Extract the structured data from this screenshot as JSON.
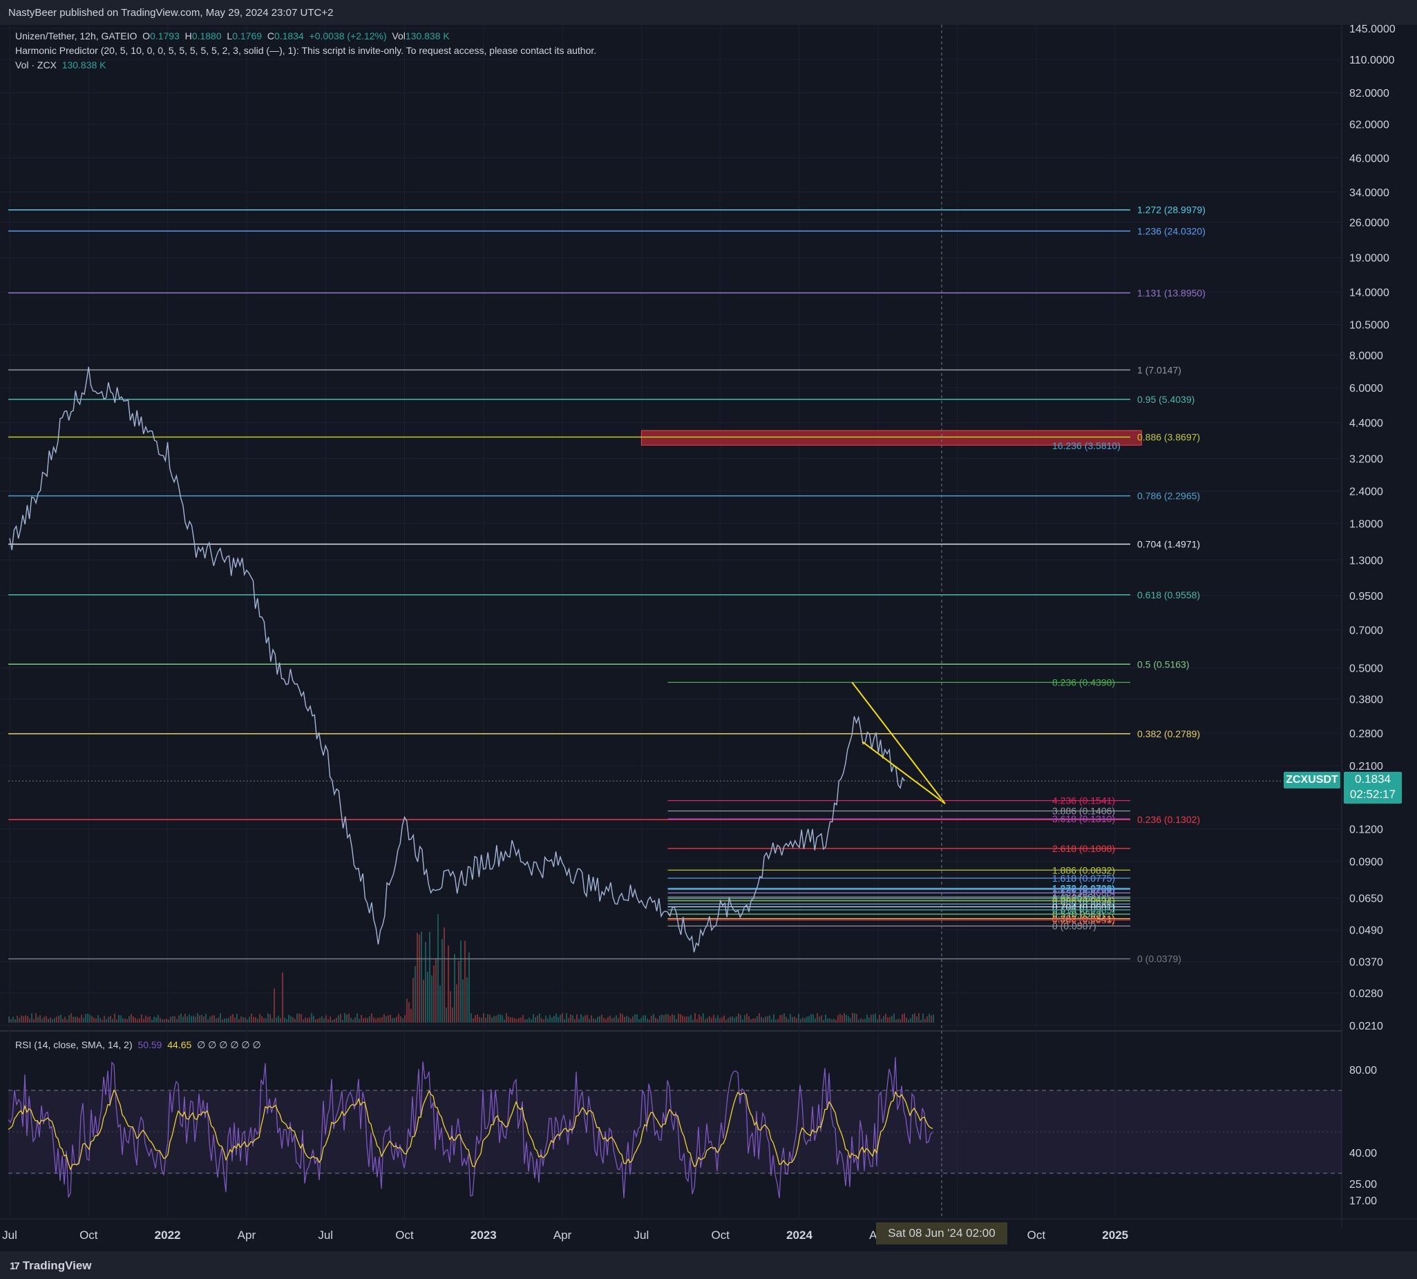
{
  "header": {
    "published": "NastyBeer published on TradingView.com, May 29, 2024 23:07 UTC+2",
    "symbol_line": {
      "pair": "Unizen/Tether, 12h, GATEIO",
      "o_label": "O",
      "o": "0.1793",
      "h_label": "H",
      "h": "0.1880",
      "l_label": "L",
      "l": "0.1769",
      "c_label": "C",
      "c": "0.1834",
      "change": "+0.0038 (+2.12%)",
      "vol_label": "Vol",
      "vol": "130.838 K"
    },
    "indicator_line": "Harmonic Predictor (20, 5, 10, 0, 0, 5, 5, 5, 5, 5, 2, 3, solid (—), 1): This script is invite-only. To request access, please contact its author.",
    "vol_line": {
      "label": "Vol · ZCX",
      "value": "130.838 K"
    }
  },
  "footer": {
    "brand": "TradingView",
    "logo_glyph": "17"
  },
  "badges": {
    "symbol": "ZCXUSDT",
    "price": "0.1834",
    "countdown": "02:52:17",
    "crosshair_date": "Sat 08 Jun '24  02:00"
  },
  "rsi": {
    "label": "RSI (14, close, SMA, 14, 2)",
    "rsi_value": "50.59",
    "sma_value": "44.65",
    "extra": "∅ ∅ ∅ ∅ ∅ ∅",
    "levels": [
      "80.00",
      "40.00",
      "25.00",
      "17.00"
    ],
    "upper_band": 70,
    "lower_band": 30
  },
  "colors": {
    "background": "#131722",
    "price_line": "#a4b4d6",
    "rsi_line": "#7e57c2",
    "rsi_sma": "#f2d52a",
    "wedge": "#f5e000",
    "accent": "#26a69a",
    "zone": "#b22833"
  },
  "chart_data": {
    "type": "line",
    "title": "Unizen/Tether, 12h, GATEIO",
    "scale": "log",
    "y_ticks": [
      "145.0000",
      "110.0000",
      "82.0000",
      "62.0000",
      "46.0000",
      "34.0000",
      "26.0000",
      "19.0000",
      "14.0000",
      "10.5000",
      "8.0000",
      "6.0000",
      "4.4000",
      "3.2000",
      "2.4000",
      "1.8000",
      "1.3000",
      "0.9500",
      "0.7000",
      "0.5000",
      "0.3800",
      "0.2800",
      "0.2100",
      "0.1200",
      "0.0900",
      "0.0650",
      "0.0490",
      "0.0370",
      "0.0280",
      "0.0210"
    ],
    "x_ticks": [
      "Jul",
      "Oct",
      "2022",
      "Apr",
      "Jul",
      "Oct",
      "2023",
      "Apr",
      "Jul",
      "Oct",
      "2024",
      "Apr",
      "Jul",
      "Oct",
      "2025"
    ],
    "x": [
      "2021-07",
      "2021-08",
      "2021-09",
      "2021-10",
      "2021-11",
      "2021-12",
      "2022-01",
      "2022-02",
      "2022-03",
      "2022-04",
      "2022-05",
      "2022-06",
      "2022-07",
      "2022-08",
      "2022-09",
      "2022-10",
      "2022-11",
      "2022-12",
      "2023-01",
      "2023-02",
      "2023-03",
      "2023-04",
      "2023-05",
      "2023-06",
      "2023-07",
      "2023-08",
      "2023-09",
      "2023-10",
      "2023-11",
      "2023-12",
      "2024-01",
      "2024-02",
      "2024-03",
      "2024-04",
      "2024-05"
    ],
    "series": [
      {
        "values": [
          1.5,
          2.2,
          4.5,
          6.5,
          5.6,
          4.2,
          3.4,
          1.5,
          1.3,
          1.2,
          0.55,
          0.4,
          0.24,
          0.1,
          0.048,
          0.13,
          0.075,
          0.075,
          0.09,
          0.1,
          0.085,
          0.09,
          0.072,
          0.068,
          0.066,
          0.058,
          0.044,
          0.058,
          0.06,
          0.1,
          0.11,
          0.105,
          0.3,
          0.26,
          0.175
        ]
      }
    ],
    "fib_levels_long": [
      {
        "label": "1.272 (28.9979)",
        "value": 28.9979,
        "color": "#4dd0e1"
      },
      {
        "label": "1.236 (24.0320)",
        "value": 24.032,
        "color": "#5b9cf6"
      },
      {
        "label": "1.131 (13.8950)",
        "value": 13.895,
        "color": "#9575cd"
      },
      {
        "label": "1 (7.0147)",
        "value": 7.0147,
        "color": "#9598a1"
      },
      {
        "label": "0.95 (5.4039)",
        "value": 5.4039,
        "color": "#4db6ac"
      },
      {
        "label": "0.886 (3.8697)",
        "value": 3.8697,
        "color": "#c0ca33"
      },
      {
        "label": "0.786 (2.2965)",
        "value": 2.2965,
        "color": "#4fa3d1"
      },
      {
        "label": "0.704 (1.4971)",
        "value": 1.4971,
        "color": "#e0e3eb"
      },
      {
        "label": "0.618 (0.9558)",
        "value": 0.9558,
        "color": "#4db6ac"
      },
      {
        "label": "0.5 (0.5163)",
        "value": 0.5163,
        "color": "#81c784"
      },
      {
        "label": "0.382 (0.2789)",
        "value": 0.2789,
        "color": "#e6cf5f"
      },
      {
        "label": "0.236 (0.1302)",
        "value": 0.1302,
        "color": "#f23645"
      },
      {
        "label": "0 (0.0379)",
        "value": 0.0379,
        "color": "#787b86"
      }
    ],
    "fib_levels_short": [
      {
        "label": "16.236 (3.5810)",
        "value": 3.581,
        "color": "#4fa3d1"
      },
      {
        "label": "8.236 (0.4398)",
        "value": 0.4398,
        "color": "#4caf50"
      },
      {
        "label": "4.236 (0.1541)",
        "value": 0.1541,
        "color": "#e91e63"
      },
      {
        "label": "3.886 (0.1406)",
        "value": 0.1406,
        "color": "#9598a1"
      },
      {
        "label": "3.618 (0.1310)",
        "value": 0.131,
        "color": "#ab47bc"
      },
      {
        "label": "2.618 (0.1008)",
        "value": 0.1008,
        "color": "#f23645"
      },
      {
        "label": "1.886 (0.0832)",
        "value": 0.0832,
        "color": "#c0ca33"
      },
      {
        "label": "1.618 (0.0775)",
        "value": 0.0775,
        "color": "#5b9cf6"
      },
      {
        "label": "1.272 (0.0708)",
        "value": 0.0708,
        "color": "#4dd0e1"
      },
      {
        "label": "1.236 (0.0701)",
        "value": 0.0701,
        "color": "#5b9cf6"
      },
      {
        "label": "1.131 (0.0680)",
        "value": 0.068,
        "color": "#9575cd"
      },
      {
        "label": "1 (0.0655)",
        "value": 0.0655,
        "color": "#9598a1"
      },
      {
        "label": "0.95 (0.0646)",
        "value": 0.0646,
        "color": "#4db6ac"
      },
      {
        "label": "0.886 (0.0634)",
        "value": 0.0634,
        "color": "#c0ca33"
      },
      {
        "label": "0.786 (0.0616)",
        "value": 0.0616,
        "color": "#4fa3d1"
      },
      {
        "label": "0.704 (0.0601)",
        "value": 0.0601,
        "color": "#e0e3eb"
      },
      {
        "label": "0.618 (0.0585)",
        "value": 0.0585,
        "color": "#4db6ac"
      },
      {
        "label": "0.5 (0.0563)",
        "value": 0.0563,
        "color": "#81c784"
      },
      {
        "label": "0.382 (0.0541)",
        "value": 0.0541,
        "color": "#e6cf5f"
      },
      {
        "label": "0.236 (0.0535)",
        "value": 0.0535,
        "color": "#f23645"
      },
      {
        "label": "0 (0.0507)",
        "value": 0.0507,
        "color": "#9598a1"
      }
    ],
    "zone": {
      "top": 4.1,
      "bottom": 3.6,
      "from": "2023-07",
      "to": "2025-02"
    }
  }
}
